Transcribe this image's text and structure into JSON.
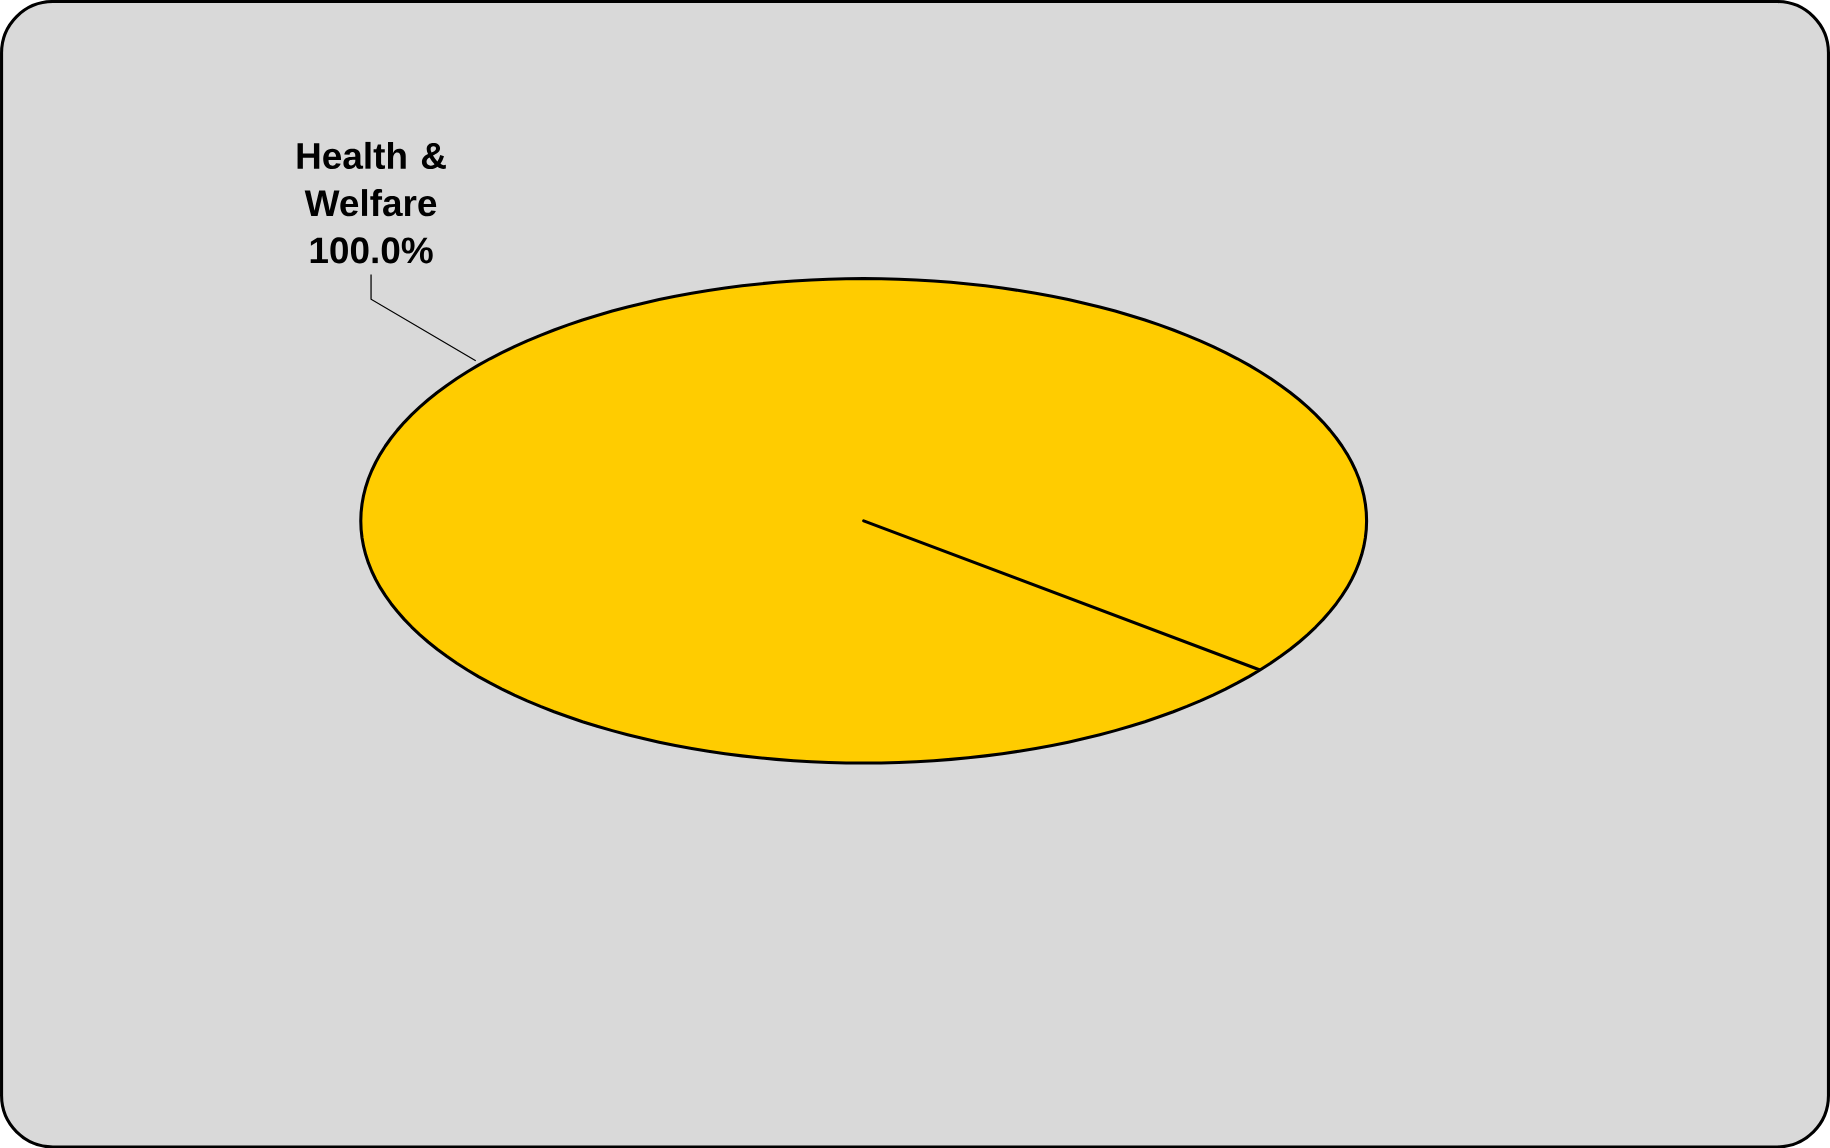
{
  "chart_data": {
    "type": "pie",
    "categories": [
      "Health & Welfare"
    ],
    "values": [
      100
    ],
    "colors": [
      "#ffcc00"
    ],
    "value_labels": [
      "100.0%"
    ]
  }
}
